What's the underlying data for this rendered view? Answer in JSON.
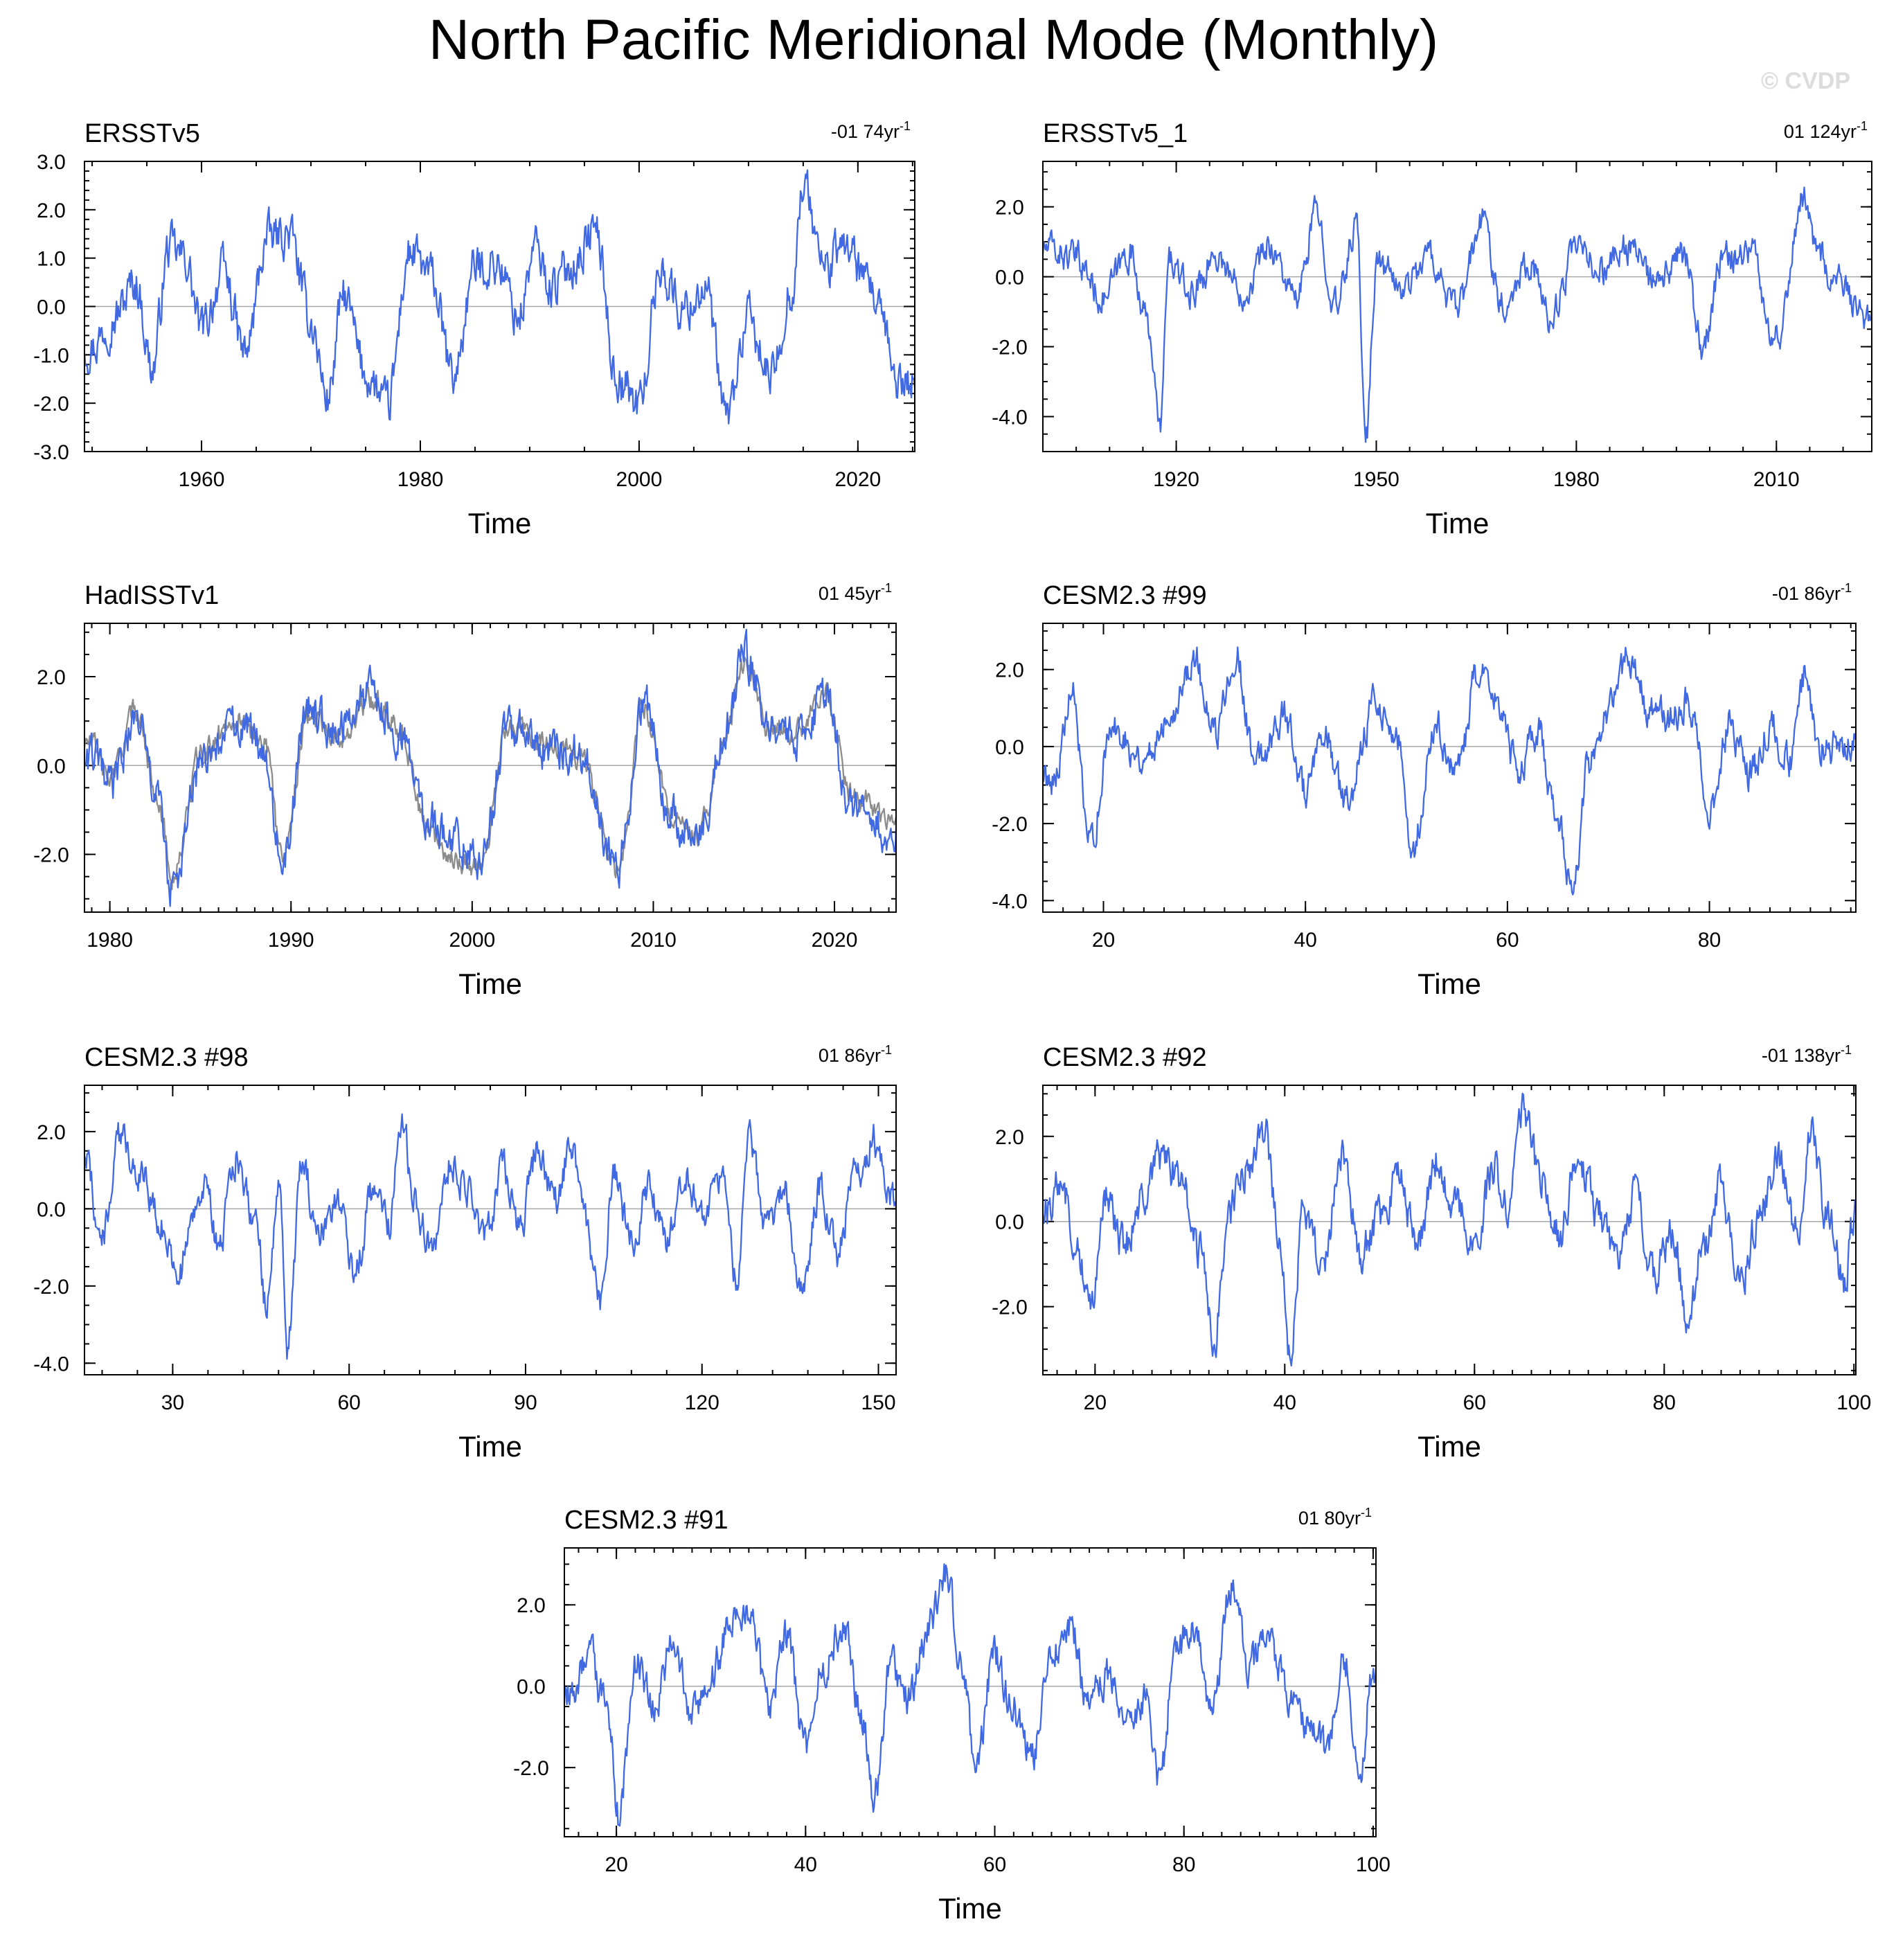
{
  "title": "North Pacific Meridional Mode (Monthly)",
  "watermark": "© CVDP",
  "colors": {
    "model": "#4169e1",
    "reference": "#8c8c8c",
    "zero_line": "#a8a8a8"
  },
  "chart_data": [
    {
      "type": "line",
      "name": "ERSSTv5",
      "trend": "-01 74yr",
      "trend_sup": "-1",
      "xlabel": "Time",
      "ylabel": "",
      "xlim": [
        1949.3,
        2025.2
      ],
      "ylim": [
        -3.0,
        3.0
      ],
      "yticks": [
        -3,
        -2,
        -1,
        0,
        1,
        2,
        3
      ],
      "ytick_labels": [
        "-3.0",
        "-2.0",
        "-1.0",
        "0.0",
        "1.0",
        "2.0",
        "3.0"
      ],
      "xticks": [
        1960,
        1980,
        2000,
        2020
      ],
      "xtick_labels": [
        "1960",
        "1980",
        "2000",
        "2020"
      ],
      "xminor": 5,
      "yminor": 0.2,
      "series": [
        {
          "name": "ERSSTv5",
          "color": "#4169e1",
          "x": [
            1950,
            1952,
            1954,
            1955.5,
            1957,
            1958.5,
            1960,
            1962,
            1964,
            1966,
            1968,
            1970,
            1971.5,
            1973,
            1975,
            1977,
            1979,
            1981,
            1983,
            1985,
            1987,
            1989,
            1990.5,
            1992,
            1994,
            1996,
            1998,
            2000,
            2002,
            2004,
            2006,
            2008,
            2010,
            2012,
            2014,
            2015,
            2017,
            2019,
            2021,
            2024
          ],
          "values": [
            -0.8,
            -0.2,
            0.5,
            -1.3,
            1.2,
            1.0,
            -0.5,
            0.7,
            -1.0,
            1.4,
            1.5,
            -0.3,
            -1.9,
            0.2,
            -1.4,
            -2.1,
            1.1,
            0.6,
            -1.5,
            0.8,
            0.9,
            -0.2,
            1.2,
            0.4,
            0.9,
            1.6,
            -1.5,
            -2.0,
            0.8,
            -0.1,
            0.4,
            -2.3,
            -0.3,
            -1.5,
            0.4,
            2.5,
            0.8,
            1.3,
            0.3,
            -1.6
          ]
        }
      ]
    },
    {
      "type": "line",
      "name": "ERSSTv5_1",
      "trend": "01 124yr",
      "trend_sup": "-1",
      "xlabel": "Time",
      "ylabel": "",
      "xlim": [
        1900,
        2024.3
      ],
      "ylim": [
        -5.0,
        3.3
      ],
      "yticks": [
        -4,
        -2,
        0,
        2
      ],
      "ytick_labels": [
        "-4.0",
        "-2.0",
        "0.0",
        "2.0"
      ],
      "xticks": [
        1920,
        1950,
        1980,
        2010
      ],
      "xtick_labels": [
        "1920",
        "1950",
        "1980",
        "2010"
      ],
      "xminor": 5,
      "yminor": 0.5,
      "series": [
        {
          "name": "ERSSTv5_1",
          "color": "#4169e1",
          "x": [
            1901,
            1905,
            1909,
            1913,
            1916,
            1917.5,
            1919,
            1922,
            1926,
            1930,
            1934,
            1938,
            1941,
            1944,
            1947,
            1948.5,
            1950,
            1954,
            1958,
            1962,
            1966,
            1969,
            1973,
            1976,
            1980,
            1984,
            1988,
            1992,
            1996,
            1999,
            2002,
            2006,
            2010,
            2014,
            2016,
            2019,
            2024
          ],
          "values": [
            0.8,
            0.5,
            -0.6,
            0.7,
            -1.5,
            -4.4,
            0.5,
            -0.5,
            0.6,
            -0.4,
            0.9,
            -0.7,
            1.8,
            -0.9,
            1.5,
            -4.5,
            0.4,
            -0.3,
            0.6,
            -1.0,
            1.6,
            -0.8,
            0.5,
            -1.2,
            0.7,
            0.2,
            0.9,
            -0.3,
            0.6,
            -2.0,
            0.5,
            0.8,
            -1.8,
            2.3,
            0.9,
            -0.2,
            -1.4
          ]
        }
      ]
    },
    {
      "type": "line",
      "name": "HadISSTv1",
      "trend": "01 45yr",
      "trend_sup": "-1",
      "xlabel": "Time",
      "ylabel": "",
      "xlim": [
        1978.6,
        2023.4
      ],
      "ylim": [
        -3.3,
        3.2
      ],
      "yticks": [
        -2,
        0,
        2
      ],
      "ytick_labels": [
        "-2.0",
        "0.0",
        "2.0"
      ],
      "xticks": [
        1980,
        1990,
        2000,
        2010,
        2020
      ],
      "xtick_labels": [
        "1980",
        "1990",
        "2000",
        "2010",
        "2020"
      ],
      "xminor": 1,
      "yminor": 0.5,
      "series": [
        {
          "name": "HadISSTv1",
          "color": "#4169e1",
          "x": [
            1979,
            1980,
            1981.5,
            1982.5,
            1983.5,
            1985,
            1987,
            1988.5,
            1989.5,
            1991,
            1992.5,
            1994.5,
            1996,
            1997.5,
            1999,
            2000.5,
            2002,
            2004,
            2006,
            2008,
            2009.5,
            2011,
            2012.5,
            2014,
            2015,
            2016.5,
            2018,
            2019.5,
            2021,
            2023
          ],
          "values": [
            0.2,
            -0.5,
            1.1,
            -0.6,
            -2.8,
            0.0,
            0.9,
            0.5,
            -2.2,
            1.3,
            0.8,
            1.6,
            0.7,
            -1.2,
            -1.8,
            -2.0,
            0.8,
            0.4,
            0.3,
            -2.3,
            1.4,
            -1.2,
            -1.6,
            0.8,
            2.5,
            0.9,
            0.6,
            1.5,
            -0.9,
            -1.4
          ]
        },
        {
          "name": "ERSSTv5",
          "color": "#8c8c8c",
          "x": [
            1979,
            1980,
            1981.5,
            1982.5,
            1983.5,
            1985,
            1987,
            1988.5,
            1989.5,
            1991,
            1992.5,
            1994.5,
            1996,
            1997.5,
            1999,
            2000.5,
            2002,
            2004,
            2006,
            2008,
            2009.5,
            2011,
            2012.5,
            2014,
            2015,
            2016.5,
            2018,
            2019.5,
            2021,
            2023
          ],
          "values": [
            0.5,
            -0.3,
            1.3,
            -0.5,
            -2.5,
            0.2,
            1.1,
            0.6,
            -2.0,
            1.2,
            0.6,
            1.5,
            0.9,
            -1.4,
            -2.1,
            -2.3,
            0.9,
            0.5,
            0.2,
            -2.4,
            1.3,
            -1.1,
            -1.5,
            0.7,
            2.3,
            0.8,
            0.7,
            1.7,
            -0.7,
            -1.1
          ]
        }
      ]
    },
    {
      "type": "line",
      "name": "CESM2.3 #99",
      "trend": "-01 86yr",
      "trend_sup": "-1",
      "xlabel": "Time",
      "ylabel": "",
      "xlim": [
        14,
        94.5
      ],
      "ylim": [
        -4.3,
        3.2
      ],
      "yticks": [
        -4,
        -2,
        0,
        2
      ],
      "ytick_labels": [
        "-4.0",
        "-2.0",
        "0.0",
        "2.0"
      ],
      "xticks": [
        20,
        40,
        60,
        80
      ],
      "xtick_labels": [
        "20",
        "40",
        "60",
        "80"
      ],
      "xminor": 2,
      "yminor": 0.5,
      "series": [
        {
          "name": "CESM2.3 #99",
          "color": "#4169e1",
          "x": [
            15,
            17,
            18.5,
            21,
            24,
            27,
            29,
            31,
            33,
            35,
            38,
            40,
            42,
            44,
            47,
            49,
            50.5,
            53,
            55,
            57,
            59,
            61,
            63,
            65,
            66.5,
            68,
            70,
            72,
            74,
            76,
            78,
            80,
            82,
            84,
            86,
            88,
            89.5,
            91,
            94
          ],
          "values": [
            -0.8,
            1.3,
            -2.6,
            0.5,
            -0.3,
            1.1,
            2.3,
            0.2,
            2.5,
            -0.4,
            0.8,
            -1.2,
            0.2,
            -1.5,
            1.2,
            0.3,
            -2.8,
            0.5,
            -0.8,
            1.8,
            1.2,
            -0.6,
            0.4,
            -1.9,
            -3.7,
            -0.5,
            1.0,
            2.3,
            1.0,
            0.7,
            1.2,
            -1.8,
            0.6,
            -0.8,
            0.5,
            -0.4,
            1.9,
            -0.1,
            0.2
          ]
        }
      ]
    },
    {
      "type": "line",
      "name": "CESM2.3 #98",
      "trend": "01 86yr",
      "trend_sup": "-1",
      "xlabel": "Time",
      "ylabel": "",
      "xlim": [
        15,
        153
      ],
      "ylim": [
        -4.3,
        3.2
      ],
      "yticks": [
        -4,
        -2,
        0,
        2
      ],
      "ytick_labels": [
        "-4.0",
        "-2.0",
        "0.0",
        "2.0"
      ],
      "xticks": [
        30,
        60,
        90,
        120,
        150
      ],
      "xtick_labels": [
        "30",
        "60",
        "90",
        "120",
        "150"
      ],
      "xminor": 6,
      "yminor": 0.5,
      "series": [
        {
          "name": "CESM2.3 #98",
          "color": "#4169e1",
          "x": [
            15,
            18,
            21,
            25,
            28,
            31,
            35,
            38,
            41,
            44,
            46,
            48,
            49.5,
            52,
            55,
            58,
            61,
            64,
            67,
            69,
            71,
            74,
            77,
            80,
            83,
            86,
            89,
            92,
            95,
            98,
            100,
            103,
            105,
            108,
            111,
            114,
            117,
            120,
            123,
            126,
            128,
            131,
            134,
            137,
            140,
            143,
            146,
            149,
            152
          ],
          "values": [
            1.5,
            -0.8,
            1.8,
            0.9,
            -0.5,
            -1.6,
            0.6,
            -0.9,
            1.4,
            -0.2,
            -2.6,
            0.8,
            -3.7,
            1.1,
            -0.7,
            0.4,
            -1.7,
            0.5,
            -0.4,
            2.5,
            0.3,
            -1.1,
            1.2,
            0.6,
            -0.8,
            1.0,
            -0.5,
            1.5,
            0.2,
            1.8,
            -0.3,
            -2.5,
            1.0,
            -0.9,
            0.5,
            -0.8,
            1.0,
            -0.3,
            0.9,
            -1.7,
            1.9,
            -0.6,
            0.4,
            -2.0,
            0.6,
            -1.1,
            0.8,
            1.8,
            0.5
          ]
        }
      ]
    },
    {
      "type": "line",
      "name": "CESM2.3 #92",
      "trend": "-01 138yr",
      "trend_sup": "-1",
      "xlabel": "Time",
      "ylabel": "",
      "xlim": [
        14.5,
        100.2
      ],
      "ylim": [
        -3.6,
        3.2
      ],
      "yticks": [
        -2,
        0,
        2
      ],
      "ytick_labels": [
        "-2.0",
        "0.0",
        "2.0"
      ],
      "xticks": [
        20,
        40,
        60,
        80,
        100
      ],
      "xtick_labels": [
        "20",
        "40",
        "60",
        "80",
        "100"
      ],
      "xminor": 2,
      "yminor": 0.5,
      "series": [
        {
          "name": "CESM2.3 #92",
          "color": "#4169e1",
          "x": [
            15,
            16.5,
            18,
            19.5,
            21,
            23,
            25,
            27,
            29,
            31,
            32.5,
            34,
            36,
            38,
            39.5,
            40.5,
            42,
            44,
            46,
            48,
            50,
            52,
            54,
            56,
            58,
            60,
            62,
            63.5,
            65,
            67,
            69,
            71,
            73,
            75,
            77,
            79,
            81,
            82.5,
            84,
            86,
            88,
            90,
            92,
            94,
            95.5,
            97,
            99,
            100
          ],
          "values": [
            0.3,
            1.0,
            -0.5,
            -2.0,
            0.6,
            -0.6,
            0.5,
            1.5,
            1.0,
            -0.7,
            -2.9,
            0.1,
            1.2,
            2.0,
            -0.4,
            -3.2,
            0.4,
            -1.1,
            1.6,
            -0.8,
            0.2,
            1.0,
            -0.6,
            1.5,
            0.3,
            -0.5,
            1.2,
            0.4,
            2.7,
            1.0,
            -0.4,
            1.6,
            0.2,
            -0.9,
            0.6,
            -1.2,
            -0.3,
            -2.3,
            -0.6,
            0.8,
            -1.5,
            0.1,
            1.5,
            -0.2,
            2.3,
            0.3,
            -1.5,
            0.1
          ]
        }
      ]
    },
    {
      "type": "line",
      "name": "CESM2.3 #91",
      "trend": "01 80yr",
      "trend_sup": "-1",
      "xlabel": "Time",
      "ylabel": "",
      "xlim": [
        14.5,
        100.3
      ],
      "ylim": [
        -3.7,
        3.4
      ],
      "yticks": [
        -2,
        0,
        2
      ],
      "ytick_labels": [
        "-2.0",
        "0.0",
        "2.0"
      ],
      "xticks": [
        20,
        40,
        60,
        80,
        100
      ],
      "xtick_labels": [
        "20",
        "40",
        "60",
        "80",
        "100"
      ],
      "xminor": 2,
      "yminor": 0.5,
      "series": [
        {
          "name": "CESM2.3 #91",
          "color": "#4169e1",
          "x": [
            15,
            17,
            19,
            20.3,
            22,
            24,
            26,
            28,
            30,
            32,
            34,
            36,
            38,
            40,
            42,
            44,
            46,
            47.3,
            49,
            51,
            53,
            55,
            56.5,
            58,
            60,
            62,
            64,
            66,
            68,
            70,
            72,
            74,
            76,
            77.5,
            79,
            81,
            83,
            85,
            87,
            89,
            91,
            93,
            95,
            97,
            98.5,
            100
          ],
          "values": [
            -0.3,
            0.8,
            -0.6,
            -3.2,
            0.6,
            -0.4,
            1.0,
            -0.8,
            0.3,
            1.5,
            2.0,
            -0.5,
            1.2,
            -1.6,
            0.5,
            1.4,
            -0.8,
            -2.7,
            0.7,
            -0.3,
            1.5,
            2.8,
            0.4,
            -1.9,
            0.8,
            -0.6,
            -1.8,
            0.7,
            1.5,
            -0.4,
            0.3,
            -1.0,
            -0.3,
            -2.4,
            0.8,
            1.5,
            -0.6,
            2.6,
            0.5,
            1.2,
            -0.2,
            -0.9,
            -1.6,
            0.7,
            -2.2,
            0.4
          ]
        }
      ]
    }
  ]
}
